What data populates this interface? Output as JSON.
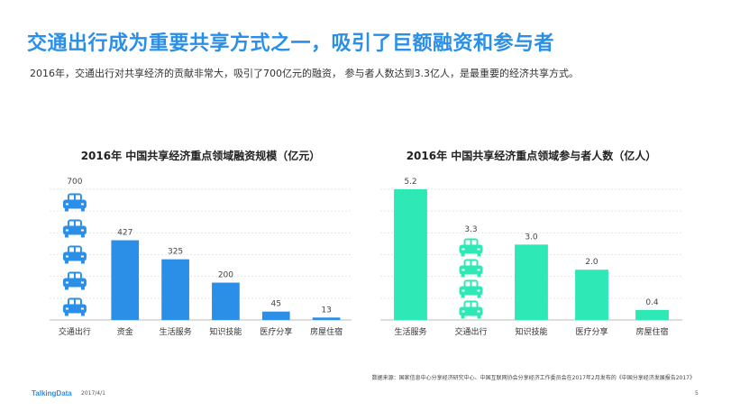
{
  "slide": {
    "title": "交通出行成为重要共享方式之一，吸引了巨额融资和参与者",
    "subtitle": "2016年，交通出行对共享经济的贡献非常大，吸引了700亿元的融资，  参与者人数达到3.3亿人，是最重要的经济共享方式。",
    "footnote": "数据来源：国家信息中心分享经济研究中心、中国互联网协会分享经济工作委员会在2017年2月发布的《中国分享经济发展报告2017》",
    "brand": "TalkingData",
    "date": "2017/4/1",
    "page": "5"
  },
  "colors": {
    "title": "#2b8fe8",
    "bar_left": "#2b8fe8",
    "bar_right": "#2ee8b6",
    "car_left": "#2b8fe8",
    "car_right": "#2ee8b6"
  },
  "chart_data": [
    {
      "type": "bar",
      "title": "2016年 中国共享经济重点领域融资规模（亿元）",
      "categories": [
        "交通出行",
        "资金",
        "生活服务",
        "知识技能",
        "医疗分享",
        "房屋住宿"
      ],
      "values": [
        700,
        427,
        325,
        200,
        45,
        13
      ],
      "value_labels": [
        "700",
        "427",
        "325",
        "200",
        "45",
        "13"
      ],
      "pictogram_category": "交通出行",
      "pictogram_icon": "car-icon",
      "pictogram_count": 5,
      "ylim": [
        0,
        700
      ],
      "grid": true
    },
    {
      "type": "bar",
      "title": "2016年 中国共享经济重点领域参与者人数（亿人）",
      "categories": [
        "生活服务",
        "交通出行",
        "知识技能",
        "医疗分享",
        "房屋住宿"
      ],
      "values": [
        5.2,
        3.3,
        3.0,
        2.0,
        0.4
      ],
      "value_labels": [
        "5.2",
        "3.3",
        "3.0",
        "2.0",
        "0.4"
      ],
      "pictogram_category": "交通出行",
      "pictogram_icon": "car-icon",
      "pictogram_count": 4,
      "ylim": [
        0,
        5.2
      ],
      "grid": true
    }
  ]
}
